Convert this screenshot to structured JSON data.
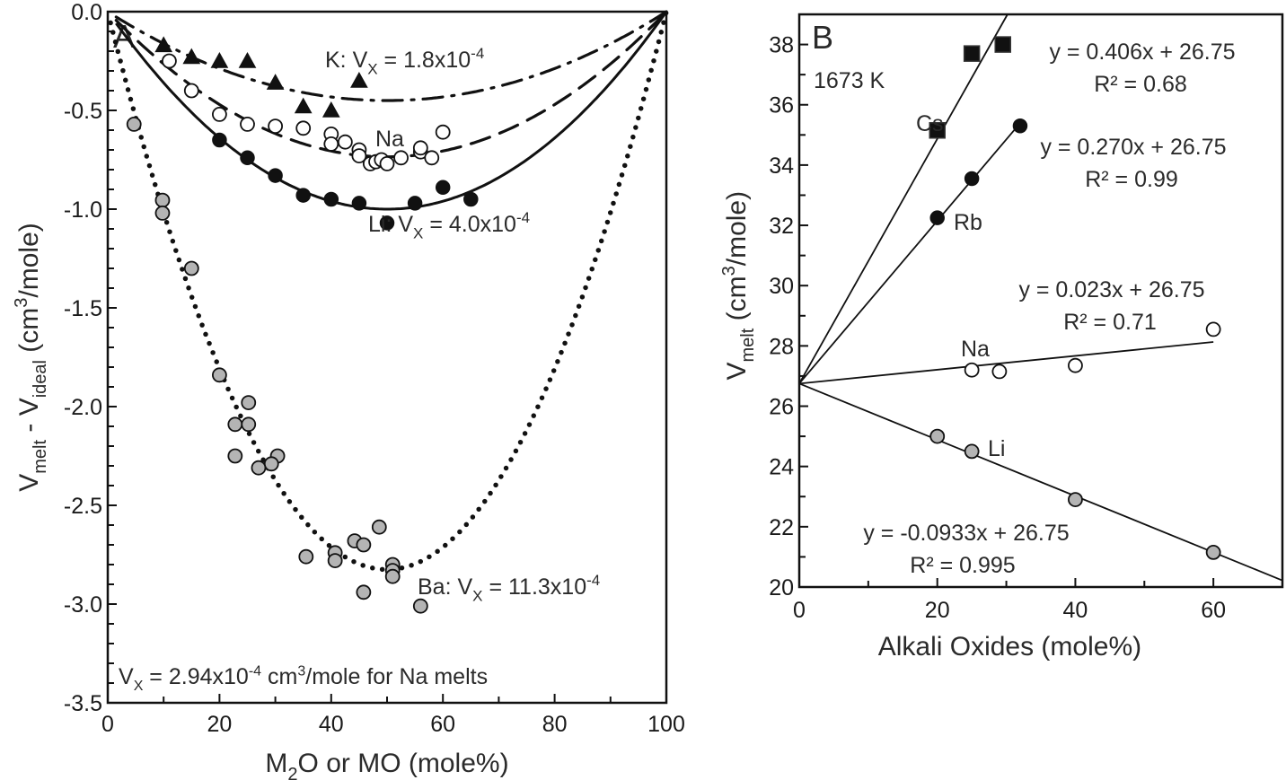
{
  "chart_data": [
    {
      "panel": "A",
      "type": "scatter",
      "title": "",
      "panel_label": "A",
      "xlabel": "M2O or MO (mole%)",
      "xlabel_parts": {
        "pre": "M",
        "sub": "2",
        "post": "O or MO (mole%)"
      },
      "ylabel_parts": {
        "v1": "V",
        "sub1": "melt",
        "mid": " - V",
        "sub2": "ideal",
        "unit_pre": " (cm",
        "sup": "3",
        "unit_post": "/mole)"
      },
      "xlim": [
        0,
        100
      ],
      "ylim": [
        -3.5,
        0.0
      ],
      "xticks": [
        0,
        20,
        40,
        60,
        80,
        100
      ],
      "xtick_labels": [
        "0",
        "20",
        "40",
        "60",
        "80",
        "100"
      ],
      "yticks": [
        0.0,
        -0.5,
        -1.0,
        -1.5,
        -2.0,
        -2.5,
        -3.0,
        -3.5
      ],
      "ytick_labels": [
        "0.0",
        "-0.5",
        "-1.0",
        "-1.5",
        "-2.0",
        "-2.5",
        "-3.0",
        "-3.5"
      ],
      "grid": false,
      "series": [
        {
          "name": "K",
          "marker": "triangle-filled",
          "fit_style": "dash-dot",
          "vx": 0.00018,
          "label": {
            "pre": "K: V",
            "sub": "X",
            "mid": " = 1.8x10",
            "sup": "-4"
          },
          "points": [
            [
              10,
              -0.17
            ],
            [
              15,
              -0.23
            ],
            [
              20,
              -0.25
            ],
            [
              25,
              -0.25
            ],
            [
              30,
              -0.36
            ],
            [
              35,
              -0.48
            ],
            [
              40,
              -0.5
            ],
            [
              45,
              -0.35
            ]
          ]
        },
        {
          "name": "Na",
          "marker": "circle-open",
          "fit_style": "dashed",
          "vx": 0.000294,
          "label": {
            "pre": "Na",
            "sub": "",
            "mid": "",
            "sup": ""
          },
          "points": [
            [
              11,
              -0.25
            ],
            [
              15,
              -0.4
            ],
            [
              20,
              -0.52
            ],
            [
              25,
              -0.57
            ],
            [
              30,
              -0.58
            ],
            [
              35,
              -0.59
            ],
            [
              40,
              -0.62
            ],
            [
              40,
              -0.67
            ],
            [
              42.5,
              -0.66
            ],
            [
              45,
              -0.7
            ],
            [
              45,
              -0.73
            ],
            [
              47,
              -0.77
            ],
            [
              48,
              -0.76
            ],
            [
              49,
              -0.75
            ],
            [
              50,
              -0.77
            ],
            [
              52.5,
              -0.74
            ],
            [
              56,
              -0.71
            ],
            [
              56,
              -0.69
            ],
            [
              58,
              -0.74
            ],
            [
              60,
              -0.61
            ]
          ]
        },
        {
          "name": "Li",
          "marker": "circle-filled",
          "fit_style": "solid",
          "vx": 0.0004,
          "label": {
            "pre": "Li: V",
            "sub": "X",
            "mid": " = 4.0x10",
            "sup": "-4"
          },
          "points": [
            [
              20,
              -0.65
            ],
            [
              25,
              -0.74
            ],
            [
              30,
              -0.83
            ],
            [
              35,
              -0.93
            ],
            [
              40,
              -0.95
            ],
            [
              45,
              -0.97
            ],
            [
              50,
              -1.07
            ],
            [
              55,
              -0.97
            ],
            [
              60,
              -0.89
            ],
            [
              65,
              -0.95
            ]
          ]
        },
        {
          "name": "Ba",
          "marker": "circle-gray",
          "fit_style": "dotted",
          "vx": 0.00113,
          "label": {
            "pre": "Ba: V",
            "sub": "X",
            "mid": " = 11.3x10",
            "sup": "-4"
          },
          "points": [
            [
              4.7,
              -0.57
            ],
            [
              9.8,
              -0.955
            ],
            [
              9.8,
              -1.02
            ],
            [
              15,
              -1.3
            ],
            [
              20,
              -1.84
            ],
            [
              25.2,
              -1.98
            ],
            [
              22.8,
              -2.09
            ],
            [
              25.2,
              -2.09
            ],
            [
              22.8,
              -2.25
            ],
            [
              30.4,
              -2.25
            ],
            [
              29.3,
              -2.29
            ],
            [
              27,
              -2.31
            ],
            [
              35.5,
              -2.76
            ],
            [
              40.7,
              -2.74
            ],
            [
              40.7,
              -2.78
            ],
            [
              44.2,
              -2.68
            ],
            [
              45.8,
              -2.7
            ],
            [
              48.6,
              -2.61
            ],
            [
              51,
              -2.8
            ],
            [
              51,
              -2.83
            ],
            [
              51,
              -2.86
            ],
            [
              45.8,
              -2.94
            ],
            [
              56,
              -3.01
            ]
          ]
        }
      ],
      "footnote": {
        "pre": "V",
        "sub": "X",
        "mid": " = 2.94x10",
        "sup": "-4",
        "mid2": " cm",
        "sup2": "3",
        "post": "/mole for Na melts"
      }
    },
    {
      "panel": "B",
      "type": "scatter",
      "title": "",
      "panel_label": "B",
      "temperature_label": "1673 K",
      "xlabel": "Alkali Oxides (mole%)",
      "ylabel_parts": {
        "v1": "V",
        "sub1": "melt",
        "unit_pre": " (cm",
        "sup": "3",
        "unit_post": "/mole)"
      },
      "xlim": [
        0,
        70
      ],
      "ylim": [
        20,
        39
      ],
      "xticks": [
        0,
        20,
        40,
        60
      ],
      "xtick_labels": [
        "0",
        "20",
        "40",
        "60"
      ],
      "yticks": [
        20,
        22,
        24,
        26,
        28,
        30,
        32,
        34,
        36,
        38
      ],
      "ytick_labels": [
        "20",
        "22",
        "24",
        "26",
        "28",
        "30",
        "32",
        "34",
        "36",
        "38"
      ],
      "grid": false,
      "series": [
        {
          "name": "Cs",
          "marker": "square-filled",
          "slope": 0.406,
          "intercept": 26.75,
          "fit_x_range": [
            0,
            30.5
          ],
          "equation": "y = 0.406x + 26.75",
          "r2": "R² = 0.68",
          "points": [
            [
              20,
              35.15
            ],
            [
              25,
              37.7
            ],
            [
              29.5,
              38.0
            ]
          ]
        },
        {
          "name": "Rb",
          "marker": "circle-filled",
          "slope": 0.27,
          "intercept": 26.75,
          "fit_x_range": [
            0,
            32
          ],
          "equation": "y = 0.270x + 26.75",
          "r2": "R² = 0.99",
          "points": [
            [
              20,
              32.25
            ],
            [
              25,
              33.55
            ],
            [
              32,
              35.3
            ]
          ]
        },
        {
          "name": "Na",
          "marker": "circle-open",
          "slope": 0.023,
          "intercept": 26.75,
          "fit_x_range": [
            0,
            60
          ],
          "equation": "y = 0.023x + 26.75",
          "r2": "R² = 0.71",
          "points": [
            [
              25,
              27.2
            ],
            [
              29,
              27.15
            ],
            [
              40,
              27.35
            ],
            [
              60,
              28.55
            ]
          ]
        },
        {
          "name": "Li",
          "marker": "circle-gray",
          "slope": -0.0933,
          "intercept": 26.75,
          "fit_x_range": [
            0,
            70
          ],
          "equation": "y =  -0.0933x + 26.75",
          "r2": "R² = 0.995",
          "points": [
            [
              20,
              25.0
            ],
            [
              25,
              24.5
            ],
            [
              40,
              22.9
            ],
            [
              60,
              21.15
            ]
          ]
        }
      ]
    }
  ]
}
